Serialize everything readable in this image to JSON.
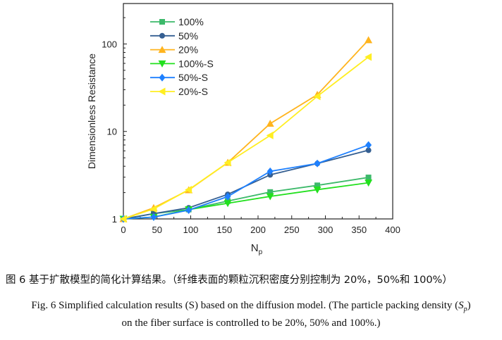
{
  "chart_data": {
    "type": "line",
    "xlabel": "N",
    "xlabel_sub": "p",
    "ylabel": "Dimensionless Resistance",
    "xlim": [
      0,
      400
    ],
    "ylim": [
      1,
      290
    ],
    "yscale": "log",
    "xticks": [
      0,
      50,
      100,
      150,
      200,
      250,
      300,
      350,
      400
    ],
    "yticks": [
      1,
      10,
      100
    ],
    "legend_position": "top-left",
    "x": [
      0,
      45,
      97,
      155,
      218,
      288,
      364
    ],
    "series": [
      {
        "name": "100%",
        "marker": "square",
        "color": "#3cb96a",
        "values": [
          1,
          1.15,
          1.28,
          1.6,
          2.03,
          2.42,
          2.98
        ]
      },
      {
        "name": "50%",
        "marker": "circle",
        "color": "#355f92",
        "values": [
          1,
          1.15,
          1.34,
          1.91,
          3.19,
          4.3,
          6.1
        ]
      },
      {
        "name": "20%",
        "marker": "triangle-up",
        "color": "#ffb41e",
        "values": [
          1,
          1.34,
          2.14,
          4.4,
          12.3,
          26.3,
          111
        ]
      },
      {
        "name": "100%-S",
        "marker": "triangle-down",
        "color": "#22e01e",
        "values": [
          1,
          1.05,
          1.28,
          1.51,
          1.81,
          2.16,
          2.59
        ]
      },
      {
        "name": "50%-S",
        "marker": "diamond",
        "color": "#1e80ff",
        "values": [
          1,
          1.05,
          1.26,
          1.8,
          3.5,
          4.3,
          7.0
        ]
      },
      {
        "name": "20%-S",
        "marker": "triangle-left",
        "color": "#ffee22",
        "values": [
          1,
          1.3,
          2.16,
          4.4,
          9.0,
          25.2,
          71
        ]
      }
    ]
  },
  "caption": {
    "chinese": "图 6  基于扩散模型的简化计算结果。（纤维表面的颗粒沉积密度分别控制为 20%，50%和 100%）",
    "english_line1": "Fig. 6 Simplified calculation results (S) based on the diffusion model. (The particle packing density (",
    "english_sp": "S",
    "english_sp_sub": "p",
    "english_line1_end": ")",
    "english_line2": "on the fiber surface is controlled to be 20%, 50% and 100%.)"
  }
}
